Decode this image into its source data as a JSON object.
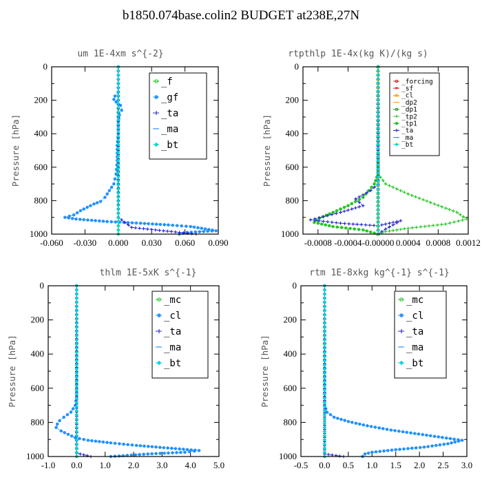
{
  "title": "b1850.074base.colin2  BUDGET at238E,27N",
  "colors": {
    "green": "#22c522",
    "blue": "#1e90ff",
    "navy": "#2222cc",
    "cyan": "#00d8d8",
    "red": "#e41a1c",
    "orange": "#ffa000",
    "darkgreen": "#1e9b1e",
    "frame": "#000000"
  },
  "chart_data": [
    {
      "type": "line",
      "title": "um   1E-4xm s^{-2}",
      "ylabel": "Pressure [hPa]",
      "xlim": [
        -0.06,
        0.09
      ],
      "ylim": [
        1000,
        0
      ],
      "xticks": [
        "-0.060",
        "-0.030",
        "0.000",
        "0.030",
        "0.060",
        "0.090"
      ],
      "yticks": [
        "0",
        "200",
        "400",
        "600",
        "800",
        "1000"
      ],
      "legend": "top-right",
      "series": [
        {
          "name": "_f",
          "color": "green",
          "marker": "circle",
          "points": [
            [
              0.0,
              0
            ],
            [
              0.0,
              200
            ],
            [
              0.0,
              400
            ],
            [
              0.0,
              600
            ],
            [
              0.0,
              800
            ],
            [
              0.0,
              1000
            ]
          ]
        },
        {
          "name": "_gf",
          "color": "blue",
          "marker": "star",
          "points": [
            [
              0.0,
              0
            ],
            [
              0.0,
              150
            ],
            [
              -0.003,
              175
            ],
            [
              -0.004,
              195
            ],
            [
              -0.002,
              210
            ],
            [
              0.002,
              230
            ],
            [
              0.003,
              260
            ],
            [
              0.001,
              290
            ],
            [
              0.0,
              330
            ],
            [
              0.0,
              400
            ],
            [
              -0.001,
              470
            ],
            [
              -0.001,
              560
            ],
            [
              -0.002,
              640
            ],
            [
              -0.004,
              700
            ],
            [
              -0.008,
              740
            ],
            [
              -0.012,
              780
            ],
            [
              -0.016,
              805
            ],
            [
              -0.022,
              820
            ],
            [
              -0.028,
              840
            ],
            [
              -0.034,
              860
            ],
            [
              -0.04,
              885
            ],
            [
              -0.048,
              900
            ],
            [
              -0.038,
              910
            ],
            [
              -0.01,
              925
            ],
            [
              0.02,
              935
            ],
            [
              0.045,
              945
            ],
            [
              0.065,
              955
            ],
            [
              0.075,
              965
            ],
            [
              0.088,
              980
            ],
            [
              0.062,
              990
            ],
            [
              0.055,
              1000
            ]
          ]
        },
        {
          "name": "_ta",
          "color": "navy",
          "marker": "plus",
          "points": [
            [
              0.0,
              0
            ],
            [
              0.0,
              500
            ],
            [
              0.0,
              900
            ],
            [
              0.012,
              960
            ],
            [
              0.055,
              990
            ],
            [
              0.07,
              1000
            ]
          ]
        },
        {
          "name": "_ma",
          "color": "blue",
          "marker": "dash",
          "points": [
            [
              0.0,
              0
            ],
            [
              0.0,
              1000
            ]
          ]
        },
        {
          "name": "_bt",
          "color": "cyan",
          "marker": "diamond",
          "points": [
            [
              0.0,
              0
            ],
            [
              0.0,
              1000
            ]
          ]
        }
      ]
    },
    {
      "type": "line",
      "title": "rtpthlp   1E-4x(kg K)/(kg s)",
      "ylabel": "Pressure [hPa]",
      "xlim": [
        -0.001,
        0.0012
      ],
      "ylim": [
        1000,
        0
      ],
      "xticks": [
        "-0.0008",
        "-0.0004",
        "-0.00000",
        "0.0004",
        "0.0008",
        "0.0012"
      ],
      "yticks": [
        "0",
        "200",
        "400",
        "600",
        "800",
        "1000"
      ],
      "legend": "top-right",
      "series": [
        {
          "name": "_forcing",
          "color": "red",
          "marker": "circle",
          "points": [
            [
              0.0,
              0
            ],
            [
              0.0,
              1000
            ]
          ]
        },
        {
          "name": "_sf",
          "color": "red",
          "marker": "triangle-down",
          "points": [
            [
              0.0,
              0
            ],
            [
              0.0,
              1000
            ]
          ]
        },
        {
          "name": "_cl",
          "color": "orange",
          "marker": "triangle-up",
          "points": [
            [
              0.0,
              0
            ],
            [
              0.0,
              1000
            ]
          ]
        },
        {
          "name": "_dp2",
          "color": "orange",
          "marker": "dash",
          "points": [
            [
              0.0,
              0
            ],
            [
              0.0,
              1000
            ]
          ]
        },
        {
          "name": "_dp1",
          "color": "darkgreen",
          "marker": "circle",
          "points": [
            [
              0.0,
              0
            ],
            [
              0.0,
              1000
            ]
          ]
        },
        {
          "name": "_tp2",
          "color": "green",
          "marker": "plus",
          "points": [
            [
              0.0,
              0
            ],
            [
              0.0,
              640
            ],
            [
              0.0001,
              700
            ],
            [
              0.0004,
              760
            ],
            [
              0.00075,
              820
            ],
            [
              0.00105,
              870
            ],
            [
              0.00118,
              910
            ],
            [
              0.0009,
              940
            ],
            [
              0.0004,
              965
            ],
            [
              0.0001,
              985
            ],
            [
              0.0,
              1000
            ]
          ]
        },
        {
          "name": "_tp1",
          "color": "green",
          "marker": "star",
          "points": [
            [
              0.0,
              0
            ],
            [
              0.0,
              640
            ],
            [
              -5e-05,
              700
            ],
            [
              -0.0002,
              780
            ],
            [
              -0.0004,
              830
            ],
            [
              -0.0006,
              870
            ],
            [
              -0.00078,
              905
            ],
            [
              -0.00085,
              930
            ],
            [
              -0.0006,
              955
            ],
            [
              -0.0002,
              975
            ],
            [
              0.0,
              1000
            ]
          ]
        },
        {
          "name": "_ta",
          "color": "navy",
          "marker": "plus",
          "points": [
            [
              0.0,
              0
            ],
            [
              0.0,
              700
            ],
            [
              -0.0001,
              740
            ],
            [
              -0.0003,
              790
            ],
            [
              -0.0002,
              830
            ],
            [
              -0.0005,
              870
            ],
            [
              -0.0009,
              915
            ],
            [
              -0.0005,
              935
            ],
            [
              0.0,
              950
            ],
            [
              0.0003,
              920
            ],
            [
              0.0001,
              970
            ],
            [
              0.0,
              1000
            ]
          ]
        },
        {
          "name": "_ma",
          "color": "blue",
          "marker": "dash",
          "points": [
            [
              0.0,
              0
            ],
            [
              0.0,
              1000
            ]
          ]
        },
        {
          "name": "_bt",
          "color": "cyan",
          "marker": "diamond",
          "points": [
            [
              0.0,
              0
            ],
            [
              0.0,
              1000
            ]
          ]
        }
      ]
    },
    {
      "type": "line",
      "title": "thlm   1E-5xK s^{-1}",
      "ylabel": "Pressure [hPa]",
      "xlim": [
        -1.0,
        5.0
      ],
      "ylim": [
        1000,
        0
      ],
      "xticks": [
        "-1.0",
        "0.0",
        "1.0",
        "2.0",
        "3.0",
        "4.0",
        "5.0"
      ],
      "yticks": [
        "0",
        "200",
        "400",
        "600",
        "800",
        "1000"
      ],
      "legend": "top-right",
      "series": [
        {
          "name": "_mc",
          "color": "green",
          "marker": "circle",
          "points": [
            [
              0.0,
              0
            ],
            [
              0.0,
              1000
            ]
          ]
        },
        {
          "name": "_cl",
          "color": "blue",
          "marker": "star",
          "points": [
            [
              0.0,
              0
            ],
            [
              0.0,
              650
            ],
            [
              -0.05,
              700
            ],
            [
              -0.2,
              740
            ],
            [
              -0.45,
              770
            ],
            [
              -0.6,
              790
            ],
            [
              -0.68,
              810
            ],
            [
              -0.72,
              830
            ],
            [
              -0.55,
              850
            ],
            [
              -0.3,
              870
            ],
            [
              -0.05,
              890
            ],
            [
              0.4,
              905
            ],
            [
              1.2,
              920
            ],
            [
              2.1,
              935
            ],
            [
              3.2,
              950
            ],
            [
              4.3,
              965
            ],
            [
              3.8,
              975
            ],
            [
              2.5,
              985
            ],
            [
              1.2,
              1000
            ]
          ]
        },
        {
          "name": "_ta",
          "color": "navy",
          "marker": "plus",
          "points": [
            [
              0.0,
              0
            ],
            [
              0.0,
              980
            ],
            [
              0.5,
              1000
            ]
          ]
        },
        {
          "name": "_ma",
          "color": "blue",
          "marker": "dash",
          "points": [
            [
              0.0,
              0
            ],
            [
              0.0,
              1000
            ]
          ]
        },
        {
          "name": "_bt",
          "color": "cyan",
          "marker": "diamond",
          "points": [
            [
              0.0,
              0
            ],
            [
              0.0,
              1000
            ]
          ]
        }
      ]
    },
    {
      "type": "line",
      "title": "rtm   1E-8xkg kg^{-1} s^{-1}",
      "ylabel": "Pressure [hPa]",
      "xlim": [
        -0.5,
        3.0
      ],
      "ylim": [
        1000,
        0
      ],
      "xticks": [
        "-0.5",
        "0.0",
        "0.5",
        "1.0",
        "1.5",
        "2.0",
        "2.5",
        "3.0"
      ],
      "yticks": [
        "0",
        "200",
        "400",
        "600",
        "800",
        "1000"
      ],
      "legend": "top-right",
      "series": [
        {
          "name": "_mc",
          "color": "green",
          "marker": "circle",
          "points": [
            [
              0.0,
              0
            ],
            [
              0.0,
              1000
            ]
          ]
        },
        {
          "name": "_cl",
          "color": "blue",
          "marker": "star",
          "points": [
            [
              0.0,
              0
            ],
            [
              0.0,
              700
            ],
            [
              0.05,
              740
            ],
            [
              0.2,
              770
            ],
            [
              0.5,
              795
            ],
            [
              0.9,
              820
            ],
            [
              1.4,
              845
            ],
            [
              1.9,
              865
            ],
            [
              2.4,
              885
            ],
            [
              2.9,
              905
            ],
            [
              2.6,
              925
            ],
            [
              2.1,
              945
            ],
            [
              1.5,
              960
            ],
            [
              1.0,
              975
            ],
            [
              0.85,
              985
            ],
            [
              0.8,
              1000
            ]
          ]
        },
        {
          "name": "_ta",
          "color": "navy",
          "marker": "plus",
          "points": [
            [
              0.0,
              0
            ],
            [
              0.0,
              985
            ],
            [
              0.4,
              1000
            ]
          ]
        },
        {
          "name": "_ma",
          "color": "blue",
          "marker": "dash",
          "points": [
            [
              0.0,
              0
            ],
            [
              0.0,
              1000
            ]
          ]
        },
        {
          "name": "_bt",
          "color": "cyan",
          "marker": "diamond",
          "points": [
            [
              0.0,
              0
            ],
            [
              0.0,
              1000
            ]
          ]
        }
      ]
    }
  ]
}
